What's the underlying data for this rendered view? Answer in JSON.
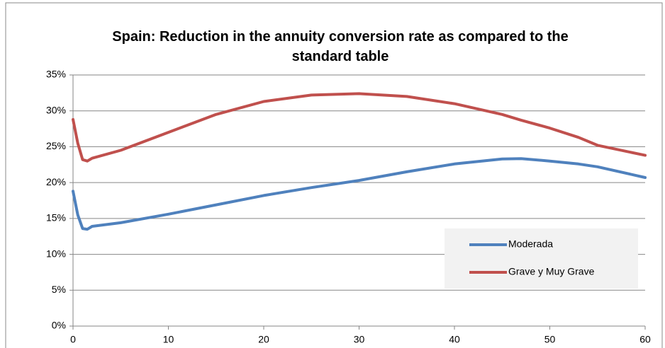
{
  "chart_data": {
    "type": "line",
    "title": "Spain: Reduction in the annuity conversion rate as compared to the standard table",
    "x": [
      0,
      0.5,
      1,
      1.5,
      2,
      5,
      10,
      15,
      20,
      25,
      30,
      35,
      40,
      45,
      47,
      50,
      53,
      55,
      60
    ],
    "series": [
      {
        "name": "Moderada",
        "color": "#4f81bd",
        "values": [
          18.8,
          15.5,
          13.6,
          13.5,
          13.9,
          14.4,
          15.6,
          16.9,
          18.2,
          19.3,
          20.3,
          21.5,
          22.6,
          23.3,
          23.35,
          23.0,
          22.6,
          22.2,
          20.7
        ]
      },
      {
        "name": "Grave y Muy Grave",
        "color": "#c0504d",
        "values": [
          28.8,
          25.5,
          23.2,
          23.0,
          23.4,
          24.5,
          27.0,
          29.5,
          31.3,
          32.2,
          32.4,
          32.0,
          31.0,
          29.5,
          28.7,
          27.6,
          26.3,
          25.2,
          23.8
        ]
      }
    ],
    "xlim": [
      0,
      60
    ],
    "xticks": [
      0,
      10,
      20,
      30,
      40,
      50,
      60
    ],
    "ylim": [
      0,
      35
    ],
    "yticks": [
      {
        "value": 0,
        "label": "0%"
      },
      {
        "value": 5,
        "label": "5%"
      },
      {
        "value": 10,
        "label": "10%"
      },
      {
        "value": 15,
        "label": "15%"
      },
      {
        "value": 20,
        "label": "20%"
      },
      {
        "value": 25,
        "label": "25%"
      },
      {
        "value": 30,
        "label": "30%"
      },
      {
        "value": 35,
        "label": "35%"
      }
    ],
    "grid": true,
    "legend": "lower-right"
  }
}
